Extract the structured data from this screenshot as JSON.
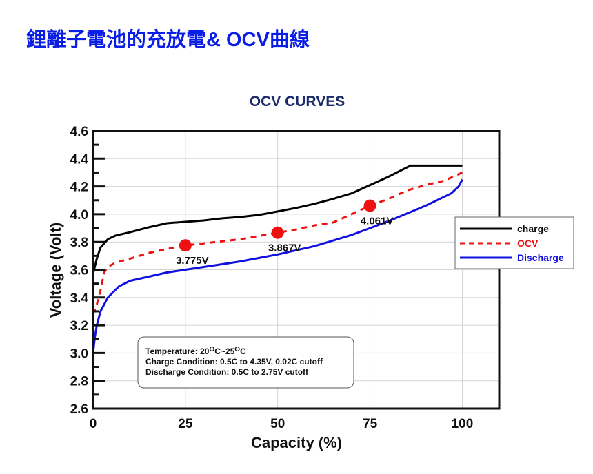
{
  "page": {
    "title": "鋰離子電池的充放電& OCV曲線"
  },
  "chart_data": {
    "type": "line",
    "title": "OCV CURVES",
    "xlabel": "Capacity (%)",
    "ylabel": "Voltage (Volt)",
    "xlim": [
      0,
      110
    ],
    "ylim": [
      2.6,
      4.6
    ],
    "xticks": [
      "0",
      "25",
      "50",
      "75",
      "100"
    ],
    "xtick_values": [
      0,
      25,
      50,
      75,
      100
    ],
    "yticks": [
      "2.6",
      "2.8",
      "3.0",
      "3.2",
      "3.4",
      "3.6",
      "3.8",
      "4.0",
      "4.2",
      "4.4",
      "4.6"
    ],
    "ytick_values": [
      2.6,
      2.8,
      3.0,
      3.2,
      3.4,
      3.6,
      3.8,
      4.0,
      4.2,
      4.4,
      4.6
    ],
    "grid": true,
    "legend_position": "right",
    "series": [
      {
        "name": "charge",
        "color": "#000000",
        "style": "solid",
        "x": [
          0,
          1,
          2,
          4,
          6,
          10,
          15,
          20,
          25,
          30,
          35,
          40,
          45,
          50,
          55,
          60,
          65,
          70,
          75,
          80,
          86,
          100
        ],
        "y": [
          3.57,
          3.68,
          3.76,
          3.82,
          3.845,
          3.87,
          3.905,
          3.935,
          3.945,
          3.955,
          3.97,
          3.98,
          3.995,
          4.02,
          4.045,
          4.075,
          4.11,
          4.15,
          4.21,
          4.27,
          4.35,
          4.35
        ]
      },
      {
        "name": "OCV",
        "color": "#ee1111",
        "style": "dashed",
        "x": [
          0,
          1,
          2,
          3,
          4,
          6,
          10,
          15,
          20,
          25,
          30,
          40,
          50,
          55,
          60,
          65,
          70,
          75,
          80,
          85,
          90,
          95,
          100
        ],
        "y": [
          3.28,
          3.35,
          3.45,
          3.58,
          3.62,
          3.65,
          3.68,
          3.72,
          3.75,
          3.775,
          3.79,
          3.82,
          3.867,
          3.89,
          3.92,
          3.94,
          4.0,
          4.061,
          4.11,
          4.17,
          4.21,
          4.24,
          4.3
        ]
      },
      {
        "name": "Discharge",
        "color": "#1010e0",
        "style": "solid",
        "x": [
          0,
          0.5,
          1,
          2,
          4,
          7,
          10,
          15,
          20,
          25,
          30,
          40,
          50,
          60,
          70,
          75,
          80,
          90,
          97,
          99,
          100
        ],
        "y": [
          3.0,
          3.12,
          3.2,
          3.3,
          3.4,
          3.48,
          3.52,
          3.55,
          3.58,
          3.6,
          3.62,
          3.66,
          3.71,
          3.77,
          3.85,
          3.9,
          3.95,
          4.06,
          4.15,
          4.2,
          4.25
        ]
      }
    ],
    "markers": [
      {
        "x": 25,
        "y": 3.775,
        "label": "3.775V",
        "color": "#ee1111"
      },
      {
        "x": 50,
        "y": 3.867,
        "label": "3.867V",
        "color": "#ee1111"
      },
      {
        "x": 75,
        "y": 4.061,
        "label": "4.061V",
        "color": "#ee1111"
      }
    ],
    "annotation": {
      "temperature_prefix": "Temperature: 20",
      "deg1": "O",
      "mid": "C~25",
      "deg2": "O",
      "end": "C",
      "lines": [
        "Charge Condition: 0.5C to 4.35V, 0.02C cutoff",
        "Discharge Condition: 0.5C to 2.75V cutoff"
      ]
    }
  }
}
